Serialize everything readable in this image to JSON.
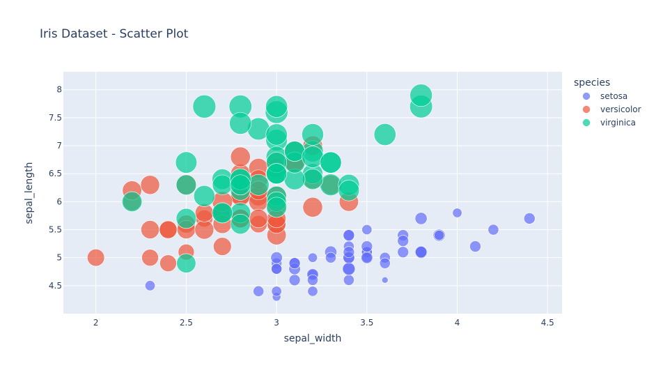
{
  "chart_data": {
    "type": "scatter",
    "title": "Iris Dataset - Scatter Plot",
    "xlabel": "sepal_width",
    "ylabel": "sepal_length",
    "xlim": [
      1.82,
      4.58
    ],
    "ylim": [
      4.0,
      8.32
    ],
    "xticks": [
      2,
      2.5,
      3,
      3.5,
      4,
      4.5
    ],
    "yticks": [
      4.5,
      5,
      5.5,
      6,
      6.5,
      7,
      7.5,
      8
    ],
    "x_tick_labels": [
      "2",
      "2.5",
      "3",
      "3.5",
      "4",
      "4.5"
    ],
    "y_tick_labels": [
      "4.5",
      "5",
      "5.5",
      "6",
      "6.5",
      "7",
      "7.5",
      "8"
    ],
    "size_range": [
      1.0,
      6.9
    ],
    "grid": true,
    "legend_title": "species",
    "legend_position": "right",
    "series": [
      {
        "name": "setosa",
        "color": "#636efa",
        "points": [
          [
            3.5,
            5.1,
            1.4
          ],
          [
            3.0,
            4.9,
            1.4
          ],
          [
            3.2,
            4.7,
            1.3
          ],
          [
            3.1,
            4.6,
            1.5
          ],
          [
            3.6,
            5.0,
            1.4
          ],
          [
            3.9,
            5.4,
            1.7
          ],
          [
            3.4,
            4.6,
            1.4
          ],
          [
            3.4,
            5.0,
            1.5
          ],
          [
            2.9,
            4.4,
            1.4
          ],
          [
            3.1,
            4.9,
            1.5
          ],
          [
            3.7,
            5.4,
            1.5
          ],
          [
            3.4,
            4.8,
            1.6
          ],
          [
            3.0,
            4.8,
            1.4
          ],
          [
            3.0,
            4.3,
            1.1
          ],
          [
            4.0,
            5.8,
            1.2
          ],
          [
            4.4,
            5.7,
            1.5
          ],
          [
            3.9,
            5.4,
            1.3
          ],
          [
            3.5,
            5.1,
            1.4
          ],
          [
            3.8,
            5.7,
            1.7
          ],
          [
            3.8,
            5.1,
            1.5
          ],
          [
            3.4,
            5.4,
            1.7
          ],
          [
            3.7,
            5.1,
            1.5
          ],
          [
            3.6,
            4.6,
            1.0
          ],
          [
            3.3,
            5.1,
            1.7
          ],
          [
            3.4,
            4.8,
            1.9
          ],
          [
            3.0,
            5.0,
            1.6
          ],
          [
            3.4,
            5.0,
            1.6
          ],
          [
            3.5,
            5.2,
            1.5
          ],
          [
            3.4,
            5.2,
            1.4
          ],
          [
            3.2,
            4.7,
            1.6
          ],
          [
            3.1,
            4.8,
            1.6
          ],
          [
            3.4,
            5.4,
            1.5
          ],
          [
            4.1,
            5.2,
            1.5
          ],
          [
            4.2,
            5.5,
            1.4
          ],
          [
            3.1,
            4.9,
            1.5
          ],
          [
            3.2,
            5.0,
            1.2
          ],
          [
            3.5,
            5.5,
            1.3
          ],
          [
            3.6,
            4.9,
            1.4
          ],
          [
            3.0,
            4.4,
            1.3
          ],
          [
            3.4,
            5.1,
            1.5
          ],
          [
            3.5,
            5.0,
            1.3
          ],
          [
            2.3,
            4.5,
            1.3
          ],
          [
            3.2,
            4.4,
            1.3
          ],
          [
            3.5,
            5.0,
            1.6
          ],
          [
            3.8,
            5.1,
            1.9
          ],
          [
            3.0,
            4.8,
            1.4
          ],
          [
            3.8,
            5.1,
            1.6
          ],
          [
            3.2,
            4.6,
            1.4
          ],
          [
            3.7,
            5.3,
            1.5
          ],
          [
            3.3,
            5.0,
            1.4
          ]
        ]
      },
      {
        "name": "versicolor",
        "color": "#ef553b",
        "points": [
          [
            3.2,
            7.0,
            4.7
          ],
          [
            3.2,
            6.4,
            4.5
          ],
          [
            3.1,
            6.9,
            4.9
          ],
          [
            2.3,
            5.5,
            4.0
          ],
          [
            2.8,
            6.5,
            4.6
          ],
          [
            2.8,
            5.7,
            4.5
          ],
          [
            3.3,
            6.3,
            4.7
          ],
          [
            2.4,
            4.9,
            3.3
          ],
          [
            2.9,
            6.6,
            4.6
          ],
          [
            2.7,
            5.2,
            3.9
          ],
          [
            2.0,
            5.0,
            3.5
          ],
          [
            3.0,
            5.9,
            4.2
          ],
          [
            2.2,
            6.0,
            4.0
          ],
          [
            2.9,
            6.1,
            4.7
          ],
          [
            2.9,
            5.6,
            3.6
          ],
          [
            3.1,
            6.7,
            4.4
          ],
          [
            3.0,
            5.6,
            4.5
          ],
          [
            2.7,
            5.8,
            4.1
          ],
          [
            2.2,
            6.2,
            4.5
          ],
          [
            2.5,
            5.6,
            3.9
          ],
          [
            3.2,
            5.9,
            4.8
          ],
          [
            2.8,
            6.1,
            4.0
          ],
          [
            2.5,
            6.3,
            4.9
          ],
          [
            2.8,
            6.1,
            4.7
          ],
          [
            2.9,
            6.4,
            4.3
          ],
          [
            3.0,
            6.6,
            4.4
          ],
          [
            2.8,
            6.8,
            4.8
          ],
          [
            3.0,
            6.7,
            5.0
          ],
          [
            2.9,
            6.0,
            4.5
          ],
          [
            2.6,
            5.7,
            3.5
          ],
          [
            2.4,
            5.5,
            3.8
          ],
          [
            2.4,
            5.5,
            3.7
          ],
          [
            2.7,
            5.8,
            3.9
          ],
          [
            2.7,
            6.0,
            5.1
          ],
          [
            3.0,
            5.4,
            4.5
          ],
          [
            3.4,
            6.0,
            4.5
          ],
          [
            3.1,
            6.7,
            4.7
          ],
          [
            2.3,
            6.3,
            4.4
          ],
          [
            3.0,
            5.6,
            4.1
          ],
          [
            2.5,
            5.5,
            4.0
          ],
          [
            2.6,
            5.5,
            4.4
          ],
          [
            3.0,
            6.1,
            4.6
          ],
          [
            2.6,
            5.8,
            4.0
          ],
          [
            2.3,
            5.0,
            3.3
          ],
          [
            2.7,
            5.6,
            4.2
          ],
          [
            3.0,
            5.7,
            4.2
          ],
          [
            2.9,
            5.7,
            4.2
          ],
          [
            2.9,
            6.2,
            4.3
          ],
          [
            2.5,
            5.1,
            3.0
          ],
          [
            2.8,
            5.7,
            4.1
          ]
        ]
      },
      {
        "name": "virginica",
        "color": "#00cc96",
        "points": [
          [
            3.3,
            6.3,
            6.0
          ],
          [
            2.7,
            5.8,
            5.1
          ],
          [
            3.0,
            7.1,
            5.9
          ],
          [
            2.9,
            6.3,
            5.6
          ],
          [
            3.0,
            6.5,
            5.8
          ],
          [
            3.0,
            7.6,
            6.6
          ],
          [
            2.5,
            4.9,
            4.5
          ],
          [
            2.9,
            7.3,
            6.3
          ],
          [
            2.5,
            6.7,
            5.8
          ],
          [
            3.6,
            7.2,
            6.1
          ],
          [
            3.2,
            6.5,
            5.1
          ],
          [
            2.7,
            6.4,
            5.3
          ],
          [
            3.0,
            6.8,
            5.5
          ],
          [
            2.5,
            5.7,
            5.0
          ],
          [
            2.8,
            5.8,
            5.1
          ],
          [
            3.2,
            6.4,
            5.3
          ],
          [
            3.0,
            6.5,
            5.5
          ],
          [
            3.8,
            7.7,
            6.7
          ],
          [
            2.6,
            7.7,
            6.9
          ],
          [
            2.2,
            6.0,
            5.0
          ],
          [
            3.2,
            6.9,
            5.7
          ],
          [
            2.8,
            5.6,
            4.9
          ],
          [
            2.8,
            7.7,
            6.7
          ],
          [
            2.7,
            6.3,
            4.9
          ],
          [
            3.3,
            6.7,
            5.7
          ],
          [
            3.2,
            7.2,
            6.0
          ],
          [
            2.8,
            6.2,
            4.8
          ],
          [
            3.0,
            6.1,
            4.9
          ],
          [
            2.8,
            6.4,
            5.6
          ],
          [
            3.0,
            7.2,
            5.8
          ],
          [
            2.8,
            7.4,
            6.1
          ],
          [
            3.8,
            7.9,
            6.4
          ],
          [
            2.8,
            6.4,
            5.6
          ],
          [
            2.8,
            6.3,
            5.1
          ],
          [
            2.6,
            6.1,
            5.6
          ],
          [
            3.0,
            7.7,
            6.1
          ],
          [
            3.4,
            6.3,
            5.6
          ],
          [
            3.1,
            6.4,
            5.5
          ],
          [
            3.0,
            6.0,
            4.8
          ],
          [
            3.1,
            6.9,
            5.4
          ],
          [
            3.1,
            6.7,
            5.6
          ],
          [
            3.1,
            6.9,
            5.1
          ],
          [
            2.7,
            5.8,
            5.1
          ],
          [
            3.2,
            6.8,
            5.9
          ],
          [
            3.3,
            6.7,
            5.7
          ],
          [
            3.0,
            6.7,
            5.2
          ],
          [
            2.5,
            6.3,
            5.0
          ],
          [
            3.0,
            6.5,
            5.2
          ],
          [
            3.4,
            6.2,
            5.4
          ],
          [
            3.0,
            5.9,
            5.1
          ]
        ]
      }
    ]
  }
}
